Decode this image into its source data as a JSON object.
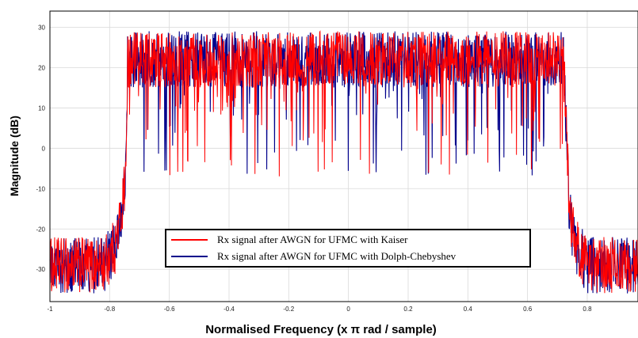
{
  "chart_data": {
    "type": "line",
    "title": "",
    "xlabel": "Normalised Frequency (x π rad / sample)",
    "ylabel": "Magnitude (dB)",
    "xlim": [
      -1,
      0.97
    ],
    "ylim": [
      -38,
      34
    ],
    "xticks": [
      -1,
      -0.8,
      -0.6,
      -0.4,
      -0.2,
      0,
      0.2,
      0.4,
      0.6,
      0.8
    ],
    "xtick_labels": [
      "-1",
      "-0.8",
      "-0.6",
      "-0.4",
      "-0.2",
      "0",
      "0.2",
      "0.4",
      "0.6",
      "0.8"
    ],
    "yticks": [
      -30,
      -20,
      -10,
      0,
      10,
      20,
      30
    ],
    "ytick_labels": [
      "-30",
      "-20",
      "-10",
      "0",
      "10",
      "20",
      "30"
    ],
    "grid": true,
    "legend_position": "lower-center",
    "series": [
      {
        "name": "Rx signal after AWGN for UFMC with Kaiser",
        "color": "#ff0000",
        "profile": {
          "x": [
            -1,
            -0.82,
            -0.78,
            -0.76,
            -0.745,
            -0.74,
            0.72,
            0.735,
            0.74,
            0.76,
            0.8,
            0.97
          ],
          "level": [
            -31,
            -31,
            -26,
            -18,
            -8,
            23,
            23,
            -8,
            -18,
            -26,
            -31,
            -31
          ]
        }
      },
      {
        "name": "Rx signal after AWGN for UFMC with Dolph-Chebyshev",
        "color": "#00008b",
        "profile": {
          "x": [
            -1,
            -0.82,
            -0.78,
            -0.76,
            -0.745,
            -0.74,
            0.72,
            0.735,
            0.74,
            0.76,
            0.8,
            0.97
          ],
          "level": [
            -31,
            -31,
            -26,
            -18,
            -8,
            23,
            23,
            -8,
            -18,
            -26,
            -31,
            -31
          ]
        }
      }
    ]
  }
}
